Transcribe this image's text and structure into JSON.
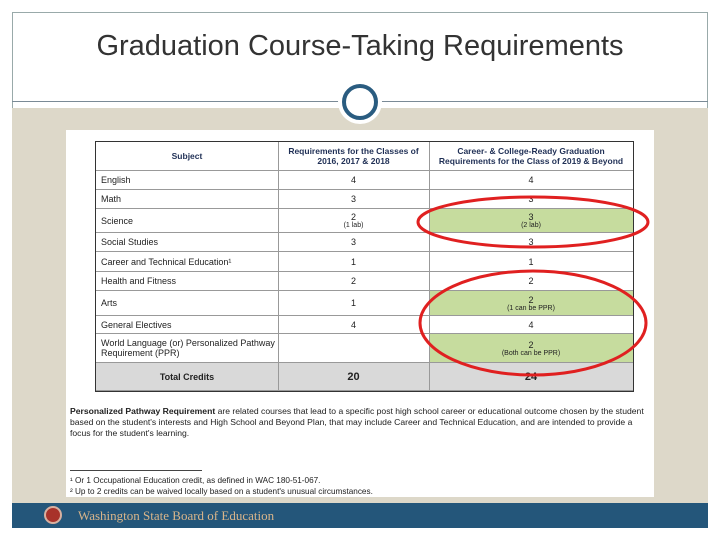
{
  "header": {
    "title": "Graduation Course-Taking Requirements"
  },
  "table": {
    "header": [
      "Subject",
      "Requirements for the Classes of 2016, 2017 & 2018",
      "Career- & College-Ready Graduation Requirements for the Class of 2019 & Beyond"
    ],
    "rows": [
      {
        "subject": "English",
        "old": 4,
        "new": 4
      },
      {
        "subject": "Math",
        "old": 3,
        "new": 3
      },
      {
        "subject": "Science",
        "old": 2,
        "old_note": "(1 lab)",
        "new": 3,
        "new_note": "(2 lab)"
      },
      {
        "subject": "Social Studies",
        "old": 3,
        "new": 3
      },
      {
        "subject": "Career and Technical Education¹",
        "old": 1,
        "new": 1
      },
      {
        "subject": "Health and Fitness",
        "old": 2,
        "new": 2
      },
      {
        "subject": "Arts",
        "old": 1,
        "new": 2,
        "new_note": "(1 can be PPR)"
      },
      {
        "subject": "General Electives",
        "old": 4,
        "new": 4
      },
      {
        "subject": "World Language (or) Personalized Pathway Requirement (PPR)",
        "new": 2,
        "new_note": "(Both can be PPR)"
      }
    ],
    "total": {
      "label": "Total Credits",
      "old": 20,
      "new": 24
    }
  },
  "definition": {
    "term": "Personalized Pathway Requirement",
    "text": "are related courses that lead to a specific post high school career or educational outcome chosen by the student based on the student's interests and High School and Beyond Plan, that may include Career and Technical Education, and are intended to provide a focus for the student's learning."
  },
  "footnotes": [
    "¹ Or 1 Occupational Education credit, as defined in WAC 180-51-067.",
    "² Up to 2 credits can be waived locally based on a student's unusual circumstances."
  ],
  "footer": {
    "text": "Washington State Board of Education"
  }
}
